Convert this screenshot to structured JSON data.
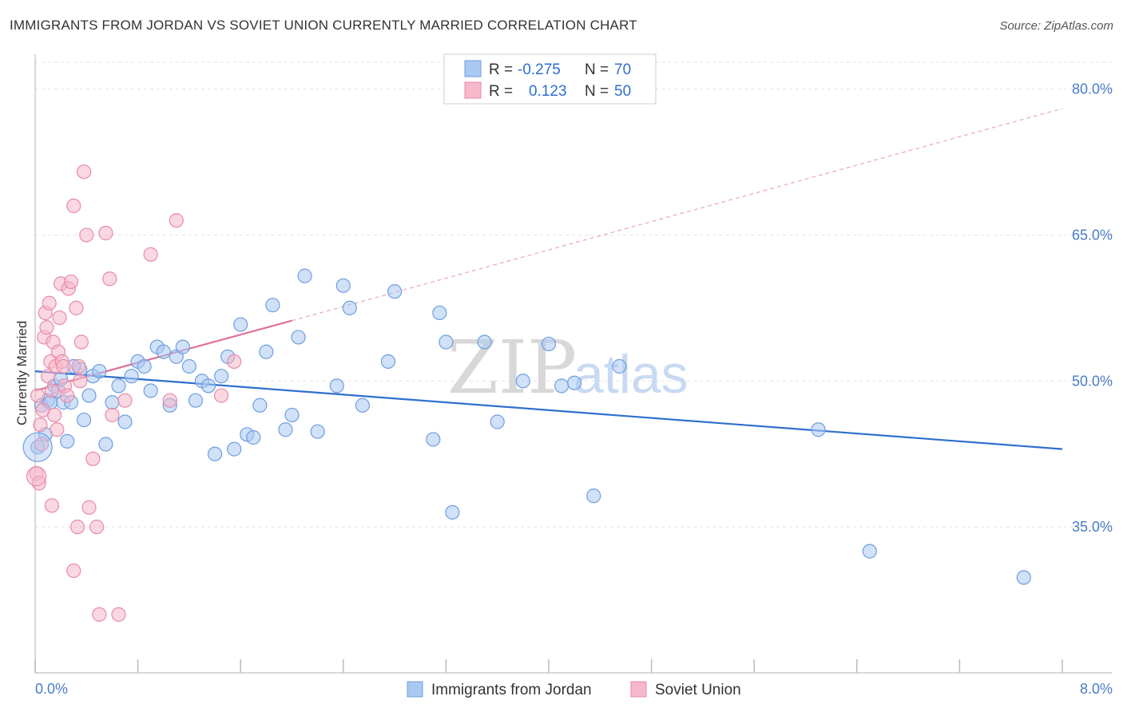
{
  "title": "IMMIGRANTS FROM JORDAN VS SOVIET UNION CURRENTLY MARRIED CORRELATION CHART",
  "source": "Source: ZipAtlas.com",
  "watermark": {
    "zip": "ZIP",
    "atlas": "atlas"
  },
  "legend": {
    "r_label": "R =",
    "n_label": "N =",
    "rows": [
      {
        "r": "-0.275",
        "n": "70",
        "color": "#a9c8f2",
        "stroke": "#6f9ee0"
      },
      {
        "r": "0.123",
        "n": "50",
        "color": "#f6b8cb",
        "stroke": "#e98aa8"
      }
    ]
  },
  "bottom_legend": [
    "Immigrants from Jordan",
    "Soviet Union"
  ],
  "chart_data": {
    "type": "scatter",
    "xlabel": "",
    "ylabel": "Currently Married",
    "xlim": [
      0,
      8
    ],
    "ylim": [
      20,
      83
    ],
    "x_tick_labels": [
      "0.0%",
      "8.0%"
    ],
    "y_ticks": [
      35,
      50,
      65,
      80
    ],
    "y_tick_labels": [
      "35.0%",
      "50.0%",
      "65.0%",
      "80.0%"
    ],
    "grid": true,
    "series": [
      {
        "name": "Immigrants from Jordan",
        "color": "#a9c8f2",
        "stroke": "#6f9ee0",
        "trend": {
          "x": [
            0.0,
            8.0
          ],
          "y": [
            51.0,
            43.0
          ],
          "color": "#2f6fce"
        },
        "points": [
          [
            0.05,
            47.5
          ],
          [
            0.1,
            48
          ],
          [
            0.12,
            47.8
          ],
          [
            0.15,
            49.5
          ],
          [
            0.18,
            49
          ],
          [
            0.22,
            47.8
          ],
          [
            0.28,
            47.8
          ],
          [
            0.35,
            51.2
          ],
          [
            0.38,
            46
          ],
          [
            0.42,
            48.5
          ],
          [
            0.45,
            50.5
          ],
          [
            0.5,
            51
          ],
          [
            0.55,
            43.5
          ],
          [
            0.65,
            49.5
          ],
          [
            0.7,
            45.8
          ],
          [
            0.75,
            50.5
          ],
          [
            0.8,
            52
          ],
          [
            0.85,
            51.5
          ],
          [
            0.9,
            49
          ],
          [
            0.95,
            53.5
          ],
          [
            1.0,
            53
          ],
          [
            1.05,
            47.5
          ],
          [
            1.1,
            52.5
          ],
          [
            1.15,
            53.5
          ],
          [
            1.2,
            51.5
          ],
          [
            1.25,
            48
          ],
          [
            1.3,
            50
          ],
          [
            1.35,
            49.5
          ],
          [
            1.4,
            42.5
          ],
          [
            1.45,
            50.5
          ],
          [
            1.5,
            52.5
          ],
          [
            1.55,
            43
          ],
          [
            1.6,
            55.8
          ],
          [
            1.65,
            44.5
          ],
          [
            1.7,
            44.2
          ],
          [
            1.8,
            53
          ],
          [
            1.85,
            57.8
          ],
          [
            1.95,
            45
          ],
          [
            2.0,
            46.5
          ],
          [
            2.05,
            54.5
          ],
          [
            2.1,
            60.8
          ],
          [
            2.2,
            44.8
          ],
          [
            2.4,
            59.8
          ],
          [
            2.45,
            57.5
          ],
          [
            2.55,
            47.5
          ],
          [
            2.75,
            52
          ],
          [
            2.8,
            59.2
          ],
          [
            3.1,
            44
          ],
          [
            3.15,
            57
          ],
          [
            3.2,
            54
          ],
          [
            3.25,
            36.5
          ],
          [
            3.5,
            54
          ],
          [
            3.6,
            45.8
          ],
          [
            3.8,
            50
          ],
          [
            4.0,
            53.8
          ],
          [
            4.1,
            49.5
          ],
          [
            4.2,
            49.8
          ],
          [
            4.35,
            38.2
          ],
          [
            4.55,
            51.5
          ],
          [
            6.1,
            45
          ],
          [
            6.5,
            32.5
          ],
          [
            7.7,
            29.8
          ],
          [
            0.6,
            47.8
          ],
          [
            0.3,
            51.5
          ],
          [
            0.08,
            44.5
          ],
          [
            0.02,
            43.2
          ],
          [
            0.25,
            43.8
          ],
          [
            1.75,
            47.5
          ],
          [
            0.2,
            50.2
          ],
          [
            2.35,
            49.5
          ]
        ]
      },
      {
        "name": "Soviet Union",
        "color": "#f6b8cb",
        "stroke": "#e98aa8",
        "trend": {
          "x": [
            0.0,
            2.0
          ],
          "y": [
            49.0,
            56.2
          ],
          "color": "#e07098"
        },
        "trend_extended": {
          "x": [
            2.0,
            8.0
          ],
          "y": [
            56.2,
            78.0
          ]
        },
        "points": [
          [
            0.02,
            48.5
          ],
          [
            0.04,
            45.5
          ],
          [
            0.05,
            43.5
          ],
          [
            0.06,
            47
          ],
          [
            0.07,
            54.5
          ],
          [
            0.08,
            57
          ],
          [
            0.09,
            55.5
          ],
          [
            0.1,
            50.5
          ],
          [
            0.11,
            58
          ],
          [
            0.12,
            52
          ],
          [
            0.13,
            49
          ],
          [
            0.14,
            54
          ],
          [
            0.15,
            46.5
          ],
          [
            0.16,
            51.5
          ],
          [
            0.17,
            45
          ],
          [
            0.18,
            53
          ],
          [
            0.19,
            56.5
          ],
          [
            0.2,
            60
          ],
          [
            0.21,
            52
          ],
          [
            0.22,
            51.5
          ],
          [
            0.23,
            49.5
          ],
          [
            0.25,
            48.5
          ],
          [
            0.26,
            59.5
          ],
          [
            0.28,
            60.2
          ],
          [
            0.3,
            68
          ],
          [
            0.32,
            57.5
          ],
          [
            0.34,
            51.5
          ],
          [
            0.36,
            54
          ],
          [
            0.38,
            71.5
          ],
          [
            0.4,
            65
          ],
          [
            0.42,
            37
          ],
          [
            0.45,
            42
          ],
          [
            0.48,
            35
          ],
          [
            0.5,
            26
          ],
          [
            0.55,
            65.2
          ],
          [
            0.58,
            60.5
          ],
          [
            0.6,
            46.5
          ],
          [
            0.65,
            26
          ],
          [
            0.7,
            48
          ],
          [
            0.9,
            63
          ],
          [
            1.05,
            48
          ],
          [
            1.1,
            66.5
          ],
          [
            1.45,
            48.5
          ],
          [
            1.55,
            52
          ],
          [
            0.3,
            30.5
          ],
          [
            0.33,
            35
          ],
          [
            0.13,
            37.2
          ],
          [
            0.01,
            40.5
          ],
          [
            0.03,
            39.5
          ],
          [
            0.35,
            50
          ]
        ]
      }
    ]
  }
}
